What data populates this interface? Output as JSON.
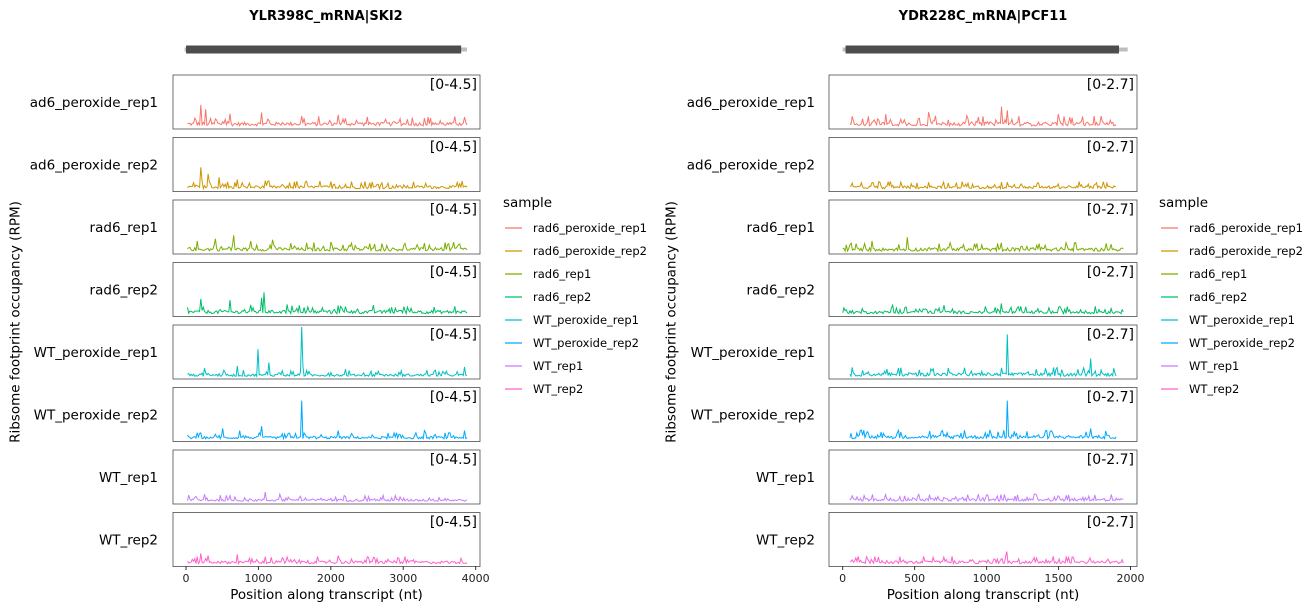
{
  "colors": {
    "rad6_peroxide_rep1": "#F8766D",
    "rad6_peroxide_rep2": "#CD9600",
    "rad6_rep1": "#7CAE00",
    "rad6_rep2": "#00BE67",
    "WT_peroxide_rep1": "#00BFC4",
    "WT_peroxide_rep2": "#00A9FF",
    "WT_rep1": "#C77CFF",
    "WT_rep2": "#FF61CC"
  },
  "chart_data": [
    {
      "type": "line",
      "title": "YLR398C_mRNA|SKI2",
      "xlabel": "Position along transcript (nt)",
      "ylabel": "Ribsome footprint occupancy (RPM)",
      "xlim": [
        -180,
        4060
      ],
      "xticks": [
        "0",
        "1000",
        "2000",
        "3000",
        "4000"
      ],
      "xtick_values": [
        0,
        1000,
        2000,
        3000,
        4000
      ],
      "gene_model": {
        "start": 0,
        "end": 3800,
        "utr_start": -20,
        "utr_end": 3880
      },
      "range_label": "[0-4.5]",
      "ylim": [
        0,
        4.5
      ],
      "row_labels": [
        "ad6_peroxide_rep1",
        "ad6_peroxide_rep2",
        "rad6_rep1",
        "rad6_rep2",
        "WT_peroxide_rep1",
        "WT_peroxide_rep2",
        "WT_rep1",
        "WT_rep2"
      ],
      "series": [
        {
          "name": "rad6_peroxide_rep1",
          "x_start": 20,
          "x_end": 3880,
          "baseline": 0.35,
          "noise": 0.55,
          "peaks": [
            [
              200,
              2.0
            ],
            [
              280,
              1.6
            ],
            [
              600,
              1.2
            ],
            [
              1050,
              1.3
            ],
            [
              1600,
              1.0
            ],
            [
              2100,
              1.1
            ],
            [
              2500,
              0.9
            ],
            [
              3300,
              0.8
            ]
          ]
        },
        {
          "name": "rad6_peroxide_rep2",
          "x_start": 20,
          "x_end": 3880,
          "baseline": 0.25,
          "noise": 0.45,
          "peaks": [
            [
              200,
              2.0
            ],
            [
              300,
              1.4
            ],
            [
              450,
              1.1
            ],
            [
              700,
              0.9
            ],
            [
              1100,
              0.8
            ],
            [
              1500,
              0.7
            ]
          ]
        },
        {
          "name": "rad6_rep1",
          "x_start": 20,
          "x_end": 3880,
          "baseline": 0.3,
          "noise": 0.5,
          "peaks": [
            [
              150,
              1.0
            ],
            [
              400,
              1.2
            ],
            [
              650,
              1.5
            ],
            [
              900,
              1.0
            ],
            [
              1200,
              1.1
            ],
            [
              2000,
              0.9
            ],
            [
              3300,
              0.8
            ]
          ]
        },
        {
          "name": "rad6_rep2",
          "x_start": 20,
          "x_end": 3880,
          "baseline": 0.25,
          "noise": 0.5,
          "peaks": [
            [
              200,
              1.4
            ],
            [
              600,
              1.3
            ],
            [
              1050,
              1.5
            ],
            [
              1080,
              2.0
            ],
            [
              1400,
              0.9
            ],
            [
              2100,
              0.8
            ],
            [
              3000,
              0.7
            ]
          ]
        },
        {
          "name": "WT_peroxide_rep1",
          "x_start": 20,
          "x_end": 3880,
          "baseline": 0.2,
          "noise": 0.35,
          "peaks": [
            [
              250,
              0.8
            ],
            [
              700,
              1.0
            ],
            [
              1000,
              2.5
            ],
            [
              1150,
              1.3
            ],
            [
              1590,
              4.5
            ],
            [
              1620,
              1.0
            ],
            [
              2200,
              0.7
            ],
            [
              3850,
              0.9
            ]
          ]
        },
        {
          "name": "WT_peroxide_rep2",
          "x_start": 20,
          "x_end": 3880,
          "baseline": 0.2,
          "noise": 0.35,
          "peaks": [
            [
              500,
              1.0
            ],
            [
              750,
              0.8
            ],
            [
              1050,
              1.2
            ],
            [
              1600,
              3.5
            ],
            [
              2100,
              0.8
            ],
            [
              3300,
              0.8
            ],
            [
              3850,
              0.8
            ]
          ]
        },
        {
          "name": "WT_rep1",
          "x_start": 20,
          "x_end": 3880,
          "baseline": 0.2,
          "noise": 0.35,
          "peaks": [
            [
              250,
              0.7
            ],
            [
              550,
              0.6
            ],
            [
              1100,
              0.9
            ],
            [
              1300,
              0.7
            ],
            [
              2200,
              0.5
            ]
          ]
        },
        {
          "name": "WT_rep2",
          "x_start": 20,
          "x_end": 3880,
          "baseline": 0.25,
          "noise": 0.4,
          "peaks": [
            [
              200,
              1.0
            ],
            [
              300,
              0.8
            ],
            [
              700,
              0.9
            ],
            [
              1100,
              0.7
            ],
            [
              2100,
              0.8
            ],
            [
              2600,
              0.6
            ]
          ]
        }
      ]
    },
    {
      "type": "line",
      "title": "YDR228C_mRNA|PCF11",
      "xlabel": "Position along transcript (nt)",
      "ylabel": "Ribsome footprint occupancy (RPM)",
      "xlim": [
        -95,
        2045
      ],
      "xticks": [
        "0",
        "500",
        "1000",
        "1500",
        "2000"
      ],
      "xtick_values": [
        0,
        500,
        1000,
        1500,
        2000
      ],
      "gene_model": {
        "start": 20,
        "end": 1920,
        "utr_start": 0,
        "utr_end": 1980
      },
      "range_label": "[0-2.7]",
      "ylim": [
        0,
        2.7
      ],
      "row_labels": [
        "ad6_peroxide_rep1",
        "ad6_peroxide_rep2",
        "rad6_rep1",
        "rad6_rep2",
        "WT_peroxide_rep1",
        "WT_peroxide_rep2",
        "WT_rep1",
        "WT_rep2"
      ],
      "series": [
        {
          "name": "rad6_peroxide_rep1",
          "x_start": 50,
          "x_end": 1900,
          "baseline": 0.2,
          "noise": 0.35,
          "peaks": [
            [
              300,
              0.7
            ],
            [
              600,
              0.8
            ],
            [
              1100,
              1.1
            ],
            [
              1140,
              0.9
            ],
            [
              1500,
              0.7
            ],
            [
              1750,
              0.6
            ]
          ]
        },
        {
          "name": "rad6_peroxide_rep2",
          "x_start": 50,
          "x_end": 1900,
          "baseline": 0.15,
          "noise": 0.25,
          "peaks": [
            [
              400,
              0.4
            ],
            [
              700,
              0.4
            ],
            [
              1100,
              0.4
            ],
            [
              1500,
              0.3
            ]
          ]
        },
        {
          "name": "rad6_rep1",
          "x_start": 0,
          "x_end": 1950,
          "baseline": 0.15,
          "noise": 0.3,
          "peaks": [
            [
              200,
              0.6
            ],
            [
              450,
              0.8
            ],
            [
              750,
              0.5
            ],
            [
              1100,
              0.5
            ],
            [
              1550,
              0.5
            ]
          ]
        },
        {
          "name": "rad6_rep2",
          "x_start": 0,
          "x_end": 1950,
          "baseline": 0.15,
          "noise": 0.25,
          "peaks": [
            [
              350,
              0.5
            ],
            [
              700,
              0.5
            ],
            [
              1100,
              0.6
            ],
            [
              1500,
              0.4
            ]
          ]
        },
        {
          "name": "WT_peroxide_rep1",
          "x_start": 50,
          "x_end": 1900,
          "baseline": 0.15,
          "noise": 0.3,
          "peaks": [
            [
              400,
              0.5
            ],
            [
              850,
              0.5
            ],
            [
              1140,
              2.3
            ],
            [
              1520,
              0.4
            ],
            [
              1720,
              1.0
            ]
          ]
        },
        {
          "name": "WT_peroxide_rep2",
          "x_start": 50,
          "x_end": 1900,
          "baseline": 0.15,
          "noise": 0.3,
          "peaks": [
            [
              400,
              0.4
            ],
            [
              850,
              0.5
            ],
            [
              1140,
              2.1
            ],
            [
              1720,
              0.6
            ]
          ]
        },
        {
          "name": "WT_rep1",
          "x_start": 50,
          "x_end": 1950,
          "baseline": 0.15,
          "noise": 0.25,
          "peaks": [
            [
              300,
              0.4
            ],
            [
              600,
              0.4
            ],
            [
              1100,
              0.4
            ],
            [
              1500,
              0.3
            ]
          ]
        },
        {
          "name": "WT_rep2",
          "x_start": 50,
          "x_end": 1950,
          "baseline": 0.15,
          "noise": 0.25,
          "peaks": [
            [
              250,
              0.4
            ],
            [
              700,
              0.4
            ],
            [
              1140,
              0.7
            ],
            [
              1500,
              0.3
            ]
          ]
        }
      ]
    }
  ],
  "legend": {
    "title": "sample",
    "items": [
      "rad6_peroxide_rep1",
      "rad6_peroxide_rep2",
      "rad6_rep1",
      "rad6_rep2",
      "WT_peroxide_rep1",
      "WT_peroxide_rep2",
      "WT_rep1",
      "WT_rep2"
    ]
  }
}
